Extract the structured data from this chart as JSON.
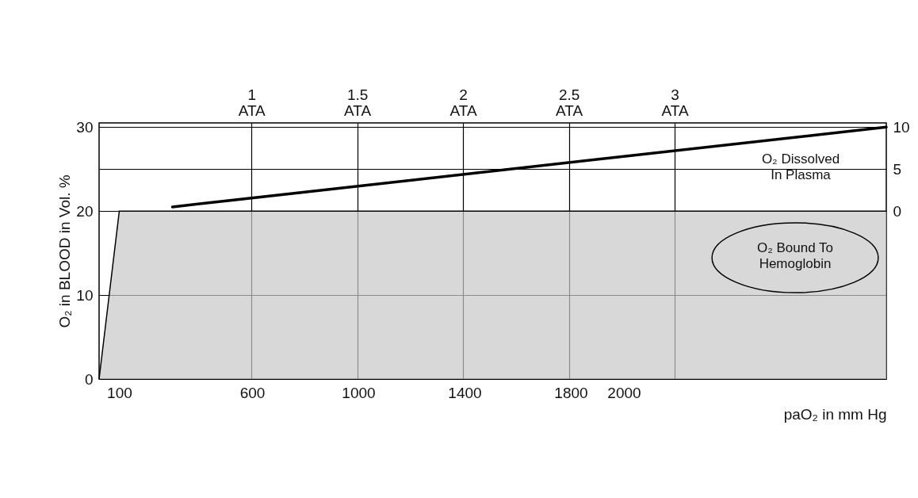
{
  "chart_data": {
    "type": "area",
    "xlabel": "paO₂ in mm Hg",
    "ylabel": "O₂ in BLOOD in Vol. %",
    "xlim": [
      24,
      2988
    ],
    "xticks": [
      100,
      600,
      1000,
      1400,
      1800,
      2000
    ],
    "x2lim": [
      0.28,
      4.0
    ],
    "x2ticks": [
      {
        "value": 1,
        "label": "1\nATA"
      },
      {
        "value": 1.5,
        "label": "1.5\nATA"
      },
      {
        "value": 2,
        "label": "2\nATA"
      },
      {
        "value": 2.5,
        "label": "2.5\nATA"
      },
      {
        "value": 3,
        "label": "3\nATA"
      }
    ],
    "ylim": [
      0,
      30.5
    ],
    "yticks": [
      0,
      10,
      20,
      30
    ],
    "y2lim": [
      -20,
      10.5
    ],
    "y2ticks": [
      0,
      5,
      10
    ],
    "grid": true,
    "series": [
      {
        "color": "#c8c8c8",
        "x": [
          24,
          100,
          2988
        ],
        "values": [
          0,
          20,
          20
        ]
      },
      {
        "type": "line",
        "axis": "y2",
        "color": "#000000",
        "x": [
          300,
          2988
        ],
        "values": [
          0.5,
          10
        ]
      }
    ],
    "annotations": [
      "O₂ Dissolved\nIn Plasma",
      "O₂ Bound To\nHemoglobin"
    ]
  }
}
